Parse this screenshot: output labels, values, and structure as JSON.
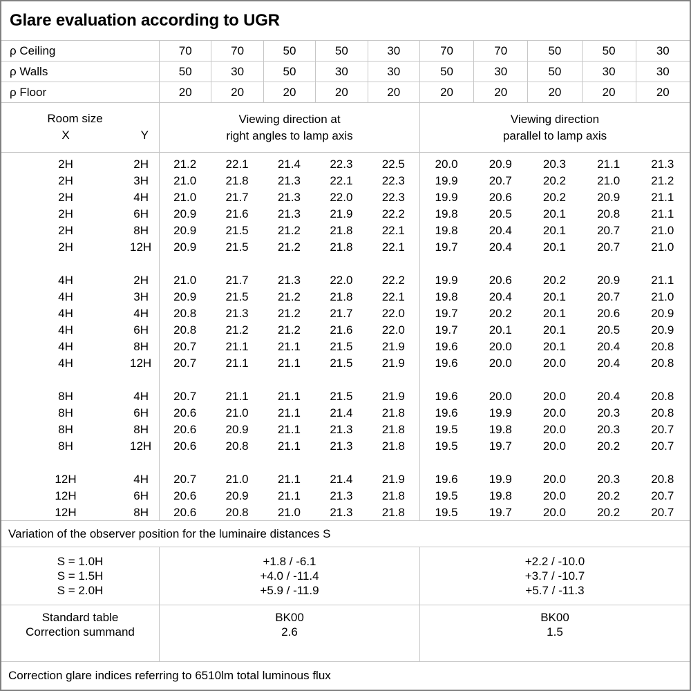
{
  "title": "Glare evaluation according to UGR",
  "reflectance": {
    "rows": [
      {
        "label": "ρ Ceiling",
        "values": [
          "70",
          "70",
          "50",
          "50",
          "30",
          "70",
          "70",
          "50",
          "50",
          "30"
        ]
      },
      {
        "label": "ρ Walls",
        "values": [
          "50",
          "30",
          "50",
          "30",
          "30",
          "50",
          "30",
          "50",
          "30",
          "30"
        ]
      },
      {
        "label": "ρ Floor",
        "values": [
          "20",
          "20",
          "20",
          "20",
          "20",
          "20",
          "20",
          "20",
          "20",
          "20"
        ]
      }
    ]
  },
  "header": {
    "room_size_label": "Room size",
    "x_label": "X",
    "y_label": "Y",
    "left_group_line1": "Viewing direction at",
    "left_group_line2": "right angles to lamp axis",
    "right_group_line1": "Viewing direction",
    "right_group_line2": "parallel to lamp axis"
  },
  "ugr_table": {
    "blocks": [
      {
        "rows": [
          {
            "x": "2H",
            "y": "2H",
            "values": [
              "21.2",
              "22.1",
              "21.4",
              "22.3",
              "22.5",
              "20.0",
              "20.9",
              "20.3",
              "21.1",
              "21.3"
            ]
          },
          {
            "x": "2H",
            "y": "3H",
            "values": [
              "21.0",
              "21.8",
              "21.3",
              "22.1",
              "22.3",
              "19.9",
              "20.7",
              "20.2",
              "21.0",
              "21.2"
            ]
          },
          {
            "x": "2H",
            "y": "4H",
            "values": [
              "21.0",
              "21.7",
              "21.3",
              "22.0",
              "22.3",
              "19.9",
              "20.6",
              "20.2",
              "20.9",
              "21.1"
            ]
          },
          {
            "x": "2H",
            "y": "6H",
            "values": [
              "20.9",
              "21.6",
              "21.3",
              "21.9",
              "22.2",
              "19.8",
              "20.5",
              "20.1",
              "20.8",
              "21.1"
            ]
          },
          {
            "x": "2H",
            "y": "8H",
            "values": [
              "20.9",
              "21.5",
              "21.2",
              "21.8",
              "22.1",
              "19.8",
              "20.4",
              "20.1",
              "20.7",
              "21.0"
            ]
          },
          {
            "x": "2H",
            "y": "12H",
            "values": [
              "20.9",
              "21.5",
              "21.2",
              "21.8",
              "22.1",
              "19.7",
              "20.4",
              "20.1",
              "20.7",
              "21.0"
            ]
          }
        ]
      },
      {
        "rows": [
          {
            "x": "4H",
            "y": "2H",
            "values": [
              "21.0",
              "21.7",
              "21.3",
              "22.0",
              "22.2",
              "19.9",
              "20.6",
              "20.2",
              "20.9",
              "21.1"
            ]
          },
          {
            "x": "4H",
            "y": "3H",
            "values": [
              "20.9",
              "21.5",
              "21.2",
              "21.8",
              "22.1",
              "19.8",
              "20.4",
              "20.1",
              "20.7",
              "21.0"
            ]
          },
          {
            "x": "4H",
            "y": "4H",
            "values": [
              "20.8",
              "21.3",
              "21.2",
              "21.7",
              "22.0",
              "19.7",
              "20.2",
              "20.1",
              "20.6",
              "20.9"
            ]
          },
          {
            "x": "4H",
            "y": "6H",
            "values": [
              "20.8",
              "21.2",
              "21.2",
              "21.6",
              "22.0",
              "19.7",
              "20.1",
              "20.1",
              "20.5",
              "20.9"
            ]
          },
          {
            "x": "4H",
            "y": "8H",
            "values": [
              "20.7",
              "21.1",
              "21.1",
              "21.5",
              "21.9",
              "19.6",
              "20.0",
              "20.1",
              "20.4",
              "20.8"
            ]
          },
          {
            "x": "4H",
            "y": "12H",
            "values": [
              "20.7",
              "21.1",
              "21.1",
              "21.5",
              "21.9",
              "19.6",
              "20.0",
              "20.0",
              "20.4",
              "20.8"
            ]
          }
        ]
      },
      {
        "rows": [
          {
            "x": "8H",
            "y": "4H",
            "values": [
              "20.7",
              "21.1",
              "21.1",
              "21.5",
              "21.9",
              "19.6",
              "20.0",
              "20.0",
              "20.4",
              "20.8"
            ]
          },
          {
            "x": "8H",
            "y": "6H",
            "values": [
              "20.6",
              "21.0",
              "21.1",
              "21.4",
              "21.8",
              "19.6",
              "19.9",
              "20.0",
              "20.3",
              "20.8"
            ]
          },
          {
            "x": "8H",
            "y": "8H",
            "values": [
              "20.6",
              "20.9",
              "21.1",
              "21.3",
              "21.8",
              "19.5",
              "19.8",
              "20.0",
              "20.3",
              "20.7"
            ]
          },
          {
            "x": "8H",
            "y": "12H",
            "values": [
              "20.6",
              "20.8",
              "21.1",
              "21.3",
              "21.8",
              "19.5",
              "19.7",
              "20.0",
              "20.2",
              "20.7"
            ]
          }
        ]
      },
      {
        "rows": [
          {
            "x": "12H",
            "y": "4H",
            "values": [
              "20.7",
              "21.0",
              "21.1",
              "21.4",
              "21.9",
              "19.6",
              "19.9",
              "20.0",
              "20.3",
              "20.8"
            ]
          },
          {
            "x": "12H",
            "y": "6H",
            "values": [
              "20.6",
              "20.9",
              "21.1",
              "21.3",
              "21.8",
              "19.5",
              "19.8",
              "20.0",
              "20.2",
              "20.7"
            ]
          },
          {
            "x": "12H",
            "y": "8H",
            "values": [
              "20.6",
              "20.8",
              "21.0",
              "21.3",
              "21.8",
              "19.5",
              "19.7",
              "20.0",
              "20.2",
              "20.7"
            ]
          }
        ]
      }
    ]
  },
  "variation": {
    "note": "Variation of the observer position for the luminaire distances S",
    "rows": [
      {
        "label": "S = 1.0H",
        "right_angles": "+1.8 / -6.1",
        "parallel": "+2.2 / -10.0"
      },
      {
        "label": "S = 1.5H",
        "right_angles": "+4.0 / -11.4",
        "parallel": "+3.7 / -10.7"
      },
      {
        "label": "S = 2.0H",
        "right_angles": "+5.9 / -11.9",
        "parallel": "+5.7 / -11.3"
      }
    ]
  },
  "summary": {
    "rows": [
      {
        "label": "Standard table",
        "right_angles": "BK00",
        "parallel": "BK00"
      },
      {
        "label": "Correction summand",
        "right_angles": "2.6",
        "parallel": "1.5"
      }
    ]
  },
  "footer_note": "Correction glare indices referring to 6510lm total luminous flux",
  "colors": {
    "grid_line": "#c6c6c6",
    "outer_border": "#808080",
    "text": "#000000",
    "background": "#ffffff"
  }
}
